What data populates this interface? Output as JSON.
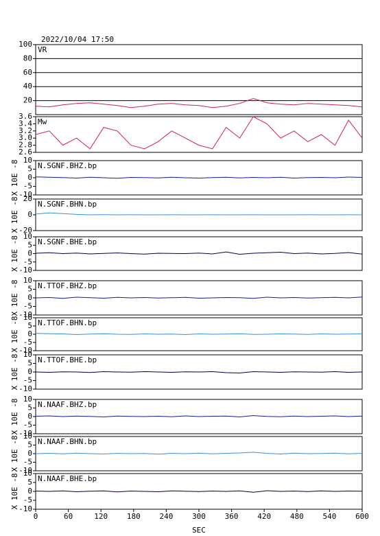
{
  "chart_data": [
    {
      "type": "line",
      "title": "2022/10/04  17:50",
      "label": "VR",
      "color": "#d0204a",
      "grid": true,
      "ylim": [
        0,
        100
      ],
      "yticks": [
        20,
        40,
        60,
        80,
        100
      ],
      "xlim": [
        0,
        600
      ],
      "x": [
        0,
        25,
        50,
        75,
        100,
        125,
        150,
        175,
        200,
        225,
        250,
        275,
        300,
        325,
        350,
        375,
        400,
        425,
        450,
        475,
        500,
        525,
        550,
        575,
        600
      ],
      "values": [
        12,
        11,
        14,
        16,
        17,
        15,
        13,
        10,
        12,
        15,
        16,
        14,
        13,
        10,
        12,
        16,
        23,
        17,
        15,
        14,
        16,
        15,
        14,
        13,
        11
      ]
    },
    {
      "type": "line",
      "label": "Mw",
      "color": "#d0204a",
      "grid": false,
      "ylim": [
        2.6,
        3.6
      ],
      "yticks": [
        2.6,
        2.8,
        {
          "value": 3,
          "label": "3.0"
        },
        3.2,
        3.4,
        3.6
      ],
      "xlim": [
        0,
        600
      ],
      "x": [
        0,
        25,
        50,
        75,
        100,
        125,
        150,
        175,
        200,
        225,
        250,
        275,
        300,
        325,
        350,
        375,
        400,
        425,
        450,
        475,
        500,
        525,
        550,
        575,
        600
      ],
      "values": [
        3.1,
        3.2,
        2.8,
        3.0,
        2.7,
        3.3,
        3.2,
        2.8,
        2.7,
        2.9,
        3.2,
        3.0,
        2.8,
        2.7,
        3.3,
        3.0,
        3.6,
        3.4,
        3.0,
        3.2,
        2.9,
        3.1,
        2.8,
        3.5,
        3.0
      ]
    },
    {
      "type": "line",
      "label": "N.SGNF.BHZ.bp",
      "ylabel": "X 10E -8",
      "color": "#1a1aa0",
      "grid": false,
      "ylim": [
        -10,
        10
      ],
      "yticks": [
        -10,
        -5,
        0,
        5,
        10
      ],
      "xlim": [
        0,
        600
      ],
      "x": [
        0,
        25,
        50,
        75,
        100,
        125,
        150,
        175,
        200,
        225,
        250,
        275,
        300,
        325,
        350,
        375,
        400,
        425,
        450,
        475,
        500,
        525,
        550,
        575,
        600
      ],
      "values": [
        0.5,
        0.3,
        0.1,
        -0.2,
        0.3,
        0,
        -0.3,
        0.2,
        0.1,
        -0.1,
        0.3,
        0,
        -0.2,
        0.1,
        0.3,
        -0.1,
        0.2,
        0,
        0.3,
        -0.2,
        0.1,
        0.2,
        0,
        0.4,
        0.2
      ]
    },
    {
      "type": "line",
      "label": "N.SGNF.BHN.bp",
      "ylabel": "X 10E -8",
      "color": "#3a8fd8",
      "grid": false,
      "ylim": [
        -20,
        20
      ],
      "yticks": [
        -20,
        0,
        20
      ],
      "xlim": [
        0,
        600
      ],
      "x": [
        0,
        25,
        50,
        75,
        100,
        125,
        150,
        175,
        200,
        225,
        250,
        275,
        300,
        325,
        350,
        375,
        400,
        425,
        450,
        475,
        500,
        525,
        550,
        575,
        600
      ],
      "values": [
        1,
        2.5,
        1.5,
        0.5,
        0,
        0.2,
        0,
        0.1,
        0,
        0,
        0.1,
        0,
        0,
        0.1,
        0,
        0,
        0.1,
        0,
        0,
        0,
        0.1,
        0,
        0,
        0.1,
        0
      ]
    },
    {
      "type": "line",
      "label": "N.SGNF.BHE.bp",
      "ylabel": "X 10E -8",
      "color": "#000040",
      "grid": false,
      "ylim": [
        -10,
        10
      ],
      "yticks": [
        -10,
        -5,
        0,
        5,
        10
      ],
      "xlim": [
        0,
        600
      ],
      "x": [
        0,
        25,
        50,
        75,
        100,
        125,
        150,
        175,
        200,
        225,
        250,
        275,
        300,
        325,
        350,
        375,
        400,
        425,
        450,
        475,
        500,
        525,
        550,
        575,
        600
      ],
      "values": [
        0.2,
        0.5,
        0,
        0.3,
        -0.2,
        0.1,
        0.4,
        0,
        -0.3,
        0.2,
        0.1,
        0,
        0.3,
        -0.2,
        1,
        -0.4,
        0.2,
        0.5,
        0.8,
        0,
        0.3,
        -0.2,
        0.1,
        0.6,
        -0.3
      ]
    },
    {
      "type": "line",
      "label": "N.TTOF.BHZ.bp",
      "ylabel": "X 10E -8",
      "color": "#1a1aa0",
      "grid": false,
      "ylim": [
        -10,
        10
      ],
      "yticks": [
        -10,
        -5,
        0,
        5,
        10
      ],
      "xlim": [
        0,
        600
      ],
      "x": [
        0,
        25,
        50,
        75,
        100,
        125,
        150,
        175,
        200,
        225,
        250,
        275,
        300,
        325,
        350,
        375,
        400,
        425,
        450,
        475,
        500,
        525,
        550,
        575,
        600
      ],
      "values": [
        0,
        0.2,
        -0.3,
        0.4,
        0.1,
        -0.2,
        0.3,
        0,
        0.2,
        -0.1,
        0.1,
        0.3,
        -0.2,
        0,
        0.2,
        0.1,
        -0.3,
        0.4,
        0,
        0.2,
        -0.1,
        0.1,
        0.3,
        0,
        0.5
      ]
    },
    {
      "type": "line",
      "label": "N.TTOF.BHN.bp",
      "ylabel": "X 10E -8",
      "color": "#3a8fd8",
      "grid": false,
      "ylim": [
        -10,
        10
      ],
      "yticks": [
        -10,
        -5,
        0,
        5,
        10
      ],
      "xlim": [
        0,
        600
      ],
      "x": [
        0,
        25,
        50,
        75,
        100,
        125,
        150,
        175,
        200,
        225,
        250,
        275,
        300,
        325,
        350,
        375,
        400,
        425,
        450,
        475,
        500,
        525,
        550,
        575,
        600
      ],
      "values": [
        0.5,
        0.3,
        0.2,
        -0.2,
        0.1,
        0.3,
        0,
        -0.1,
        0.2,
        0,
        0.1,
        -0.2,
        0.2,
        0,
        0.1,
        0.3,
        -0.1,
        0,
        0.2,
        0.1,
        -0.1,
        0.2,
        0,
        0.1,
        0.2
      ]
    },
    {
      "type": "line",
      "label": "N.TTOF.BHE.bp",
      "ylabel": "X 10E -8",
      "color": "#000040",
      "grid": false,
      "ylim": [
        -10,
        10
      ],
      "yticks": [
        -10,
        -5,
        0,
        5,
        10
      ],
      "xlim": [
        0,
        600
      ],
      "x": [
        0,
        25,
        50,
        75,
        100,
        125,
        150,
        175,
        200,
        225,
        250,
        275,
        300,
        325,
        350,
        375,
        400,
        425,
        450,
        475,
        500,
        525,
        550,
        575,
        600
      ],
      "values": [
        0,
        -0.2,
        0.1,
        0,
        -0.3,
        0.2,
        0,
        -0.1,
        0.2,
        0,
        -0.2,
        0.1,
        0,
        0.2,
        -0.4,
        -0.6,
        0.2,
        0,
        -0.2,
        0.1,
        0,
        -0.1,
        0.2,
        -0.2,
        0
      ]
    },
    {
      "type": "line",
      "label": "N.NAAF.BHZ.bp",
      "ylabel": "X 10E -8",
      "color": "#1a1aa0",
      "grid": false,
      "ylim": [
        -10,
        10
      ],
      "yticks": [
        -10,
        -5,
        0,
        5,
        10
      ],
      "xlim": [
        0,
        600
      ],
      "x": [
        0,
        25,
        50,
        75,
        100,
        125,
        150,
        175,
        200,
        225,
        250,
        275,
        300,
        325,
        350,
        375,
        400,
        425,
        450,
        475,
        500,
        525,
        550,
        575,
        600
      ],
      "values": [
        0.2,
        0.4,
        0,
        0.3,
        0.1,
        -0.2,
        0.3,
        0.1,
        0,
        0.2,
        -0.1,
        0.4,
        0,
        0.2,
        0.3,
        -0.2,
        0.6,
        0.1,
        -0.1,
        0.3,
        0,
        0.2,
        0.4,
        0,
        0.3
      ]
    },
    {
      "type": "line",
      "label": "N.NAAF.BHN.bp",
      "ylabel": "X 10E -8",
      "color": "#3a8fd8",
      "grid": false,
      "ylim": [
        -10,
        10
      ],
      "yticks": [
        -10,
        -5,
        0,
        5,
        10
      ],
      "xlim": [
        0,
        600
      ],
      "x": [
        0,
        25,
        50,
        75,
        100,
        125,
        150,
        175,
        200,
        225,
        250,
        275,
        300,
        325,
        350,
        375,
        400,
        425,
        450,
        475,
        500,
        525,
        550,
        575,
        600
      ],
      "values": [
        0,
        0.2,
        -0.1,
        0.3,
        0,
        -0.2,
        0.2,
        0,
        0.1,
        -0.3,
        0.2,
        0,
        0.3,
        -0.1,
        0.2,
        0.4,
        0.8,
        0.2,
        -0.2,
        0.3,
        0,
        0.1,
        0.3,
        -0.1,
        0.2
      ]
    },
    {
      "type": "line",
      "label": "N.NAAF.BHE.bp",
      "ylabel": "X 10E -8",
      "color": "#000040",
      "grid": false,
      "ylim": [
        -10,
        10
      ],
      "yticks": [
        -10,
        -5,
        0,
        5,
        10
      ],
      "xlim": [
        0,
        600
      ],
      "xticks": [
        0,
        60,
        120,
        180,
        240,
        300,
        360,
        420,
        480,
        540,
        600
      ],
      "xlabel": "SEC",
      "x": [
        0,
        25,
        50,
        75,
        100,
        125,
        150,
        175,
        200,
        225,
        250,
        275,
        300,
        325,
        350,
        375,
        400,
        425,
        450,
        475,
        500,
        525,
        550,
        575,
        600
      ],
      "values": [
        0.2,
        0,
        0.3,
        -0.2,
        0.1,
        0.3,
        -0.3,
        0.2,
        0,
        -0.2,
        0.3,
        0.1,
        -0.1,
        0.2,
        0,
        0.3,
        -0.5,
        0.4,
        0,
        0.2,
        -0.1,
        0.3,
        0,
        0.2,
        0.1
      ]
    }
  ]
}
